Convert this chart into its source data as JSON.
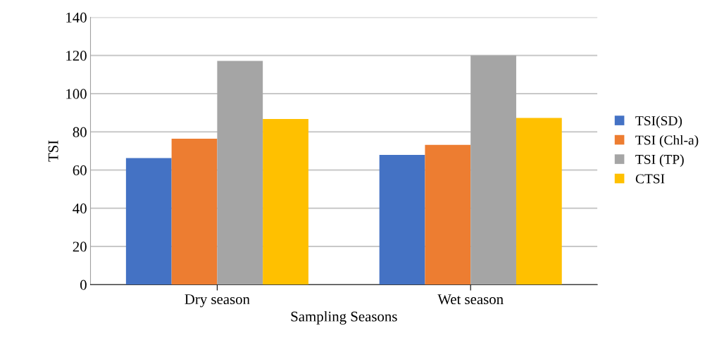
{
  "chart_data": {
    "type": "bar",
    "xlabel": "Sampling Seasons",
    "ylabel": "TSI",
    "categories": [
      "Dry season",
      "Wet season"
    ],
    "series": [
      {
        "name": "TSI(SD)",
        "color": "#4472c4",
        "values": [
          66.3,
          67.9
        ]
      },
      {
        "name": "TSI (Chl-a)",
        "color": "#ed7d31",
        "values": [
          76.4,
          73.2
        ]
      },
      {
        "name": "TSI (TP)",
        "color": "#a5a5a5",
        "values": [
          117.1,
          120
        ]
      },
      {
        "name": "CTSI",
        "color": "#ffc000",
        "values": [
          86.7,
          87.3
        ]
      }
    ],
    "ylim": [
      0,
      140
    ],
    "yticks": [
      0,
      20,
      40,
      60,
      80,
      100,
      120,
      140
    ],
    "grid": "y",
    "legend": "right"
  }
}
